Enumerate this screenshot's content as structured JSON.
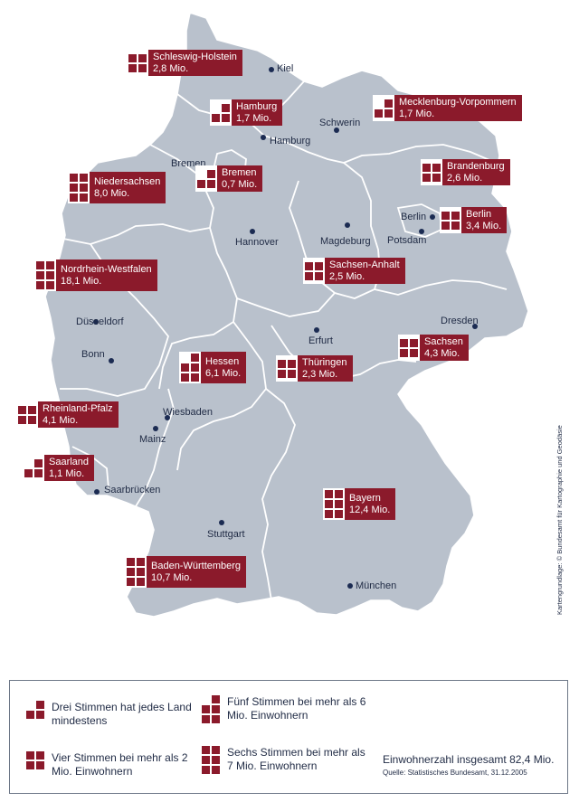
{
  "map": {
    "cities": [
      {
        "id": "kiel",
        "name": "Kiel"
      },
      {
        "id": "schwerin",
        "name": "Schwerin"
      },
      {
        "id": "hamburg",
        "name": "Hamburg"
      },
      {
        "id": "bremen",
        "name": "Bremen"
      },
      {
        "id": "berlin",
        "name": "Berlin"
      },
      {
        "id": "potsdam",
        "name": "Potsdam"
      },
      {
        "id": "hannover",
        "name": "Hannover"
      },
      {
        "id": "magdeburg",
        "name": "Magdeburg"
      },
      {
        "id": "duesseldorf",
        "name": "Düsseldorf"
      },
      {
        "id": "bonn",
        "name": "Bonn"
      },
      {
        "id": "erfurt",
        "name": "Erfurt"
      },
      {
        "id": "dresden",
        "name": "Dresden"
      },
      {
        "id": "wiesbaden",
        "name": "Wiesbaden"
      },
      {
        "id": "mainz",
        "name": "Mainz"
      },
      {
        "id": "saarbruecken",
        "name": "Saarbrücken"
      },
      {
        "id": "stuttgart",
        "name": "Stuttgart"
      },
      {
        "id": "muenchen",
        "name": "München"
      }
    ],
    "states": [
      {
        "id": "sh",
        "name": "Schleswig-Holstein",
        "population": "2,8 Mio.",
        "votes": 4
      },
      {
        "id": "hh",
        "name": "Hamburg",
        "population": "1,7 Mio.",
        "votes": 3
      },
      {
        "id": "mv",
        "name": "Mecklenburg-Vorpommern",
        "population": "1,7 Mio.",
        "votes": 3
      },
      {
        "id": "hb",
        "name": "Bremen",
        "population": "0,7 Mio.",
        "votes": 3
      },
      {
        "id": "ni",
        "name": "Niedersachsen",
        "population": "8,0 Mio.",
        "votes": 6
      },
      {
        "id": "bb",
        "name": "Brandenburg",
        "population": "2,6 Mio.",
        "votes": 4
      },
      {
        "id": "be",
        "name": "Berlin",
        "population": "3,4 Mio.",
        "votes": 4
      },
      {
        "id": "st",
        "name": "Sachsen-Anhalt",
        "population": "2,5 Mio.",
        "votes": 4
      },
      {
        "id": "nw",
        "name": "Nordrhein-Westfalen",
        "population": "18,1 Mio.",
        "votes": 6
      },
      {
        "id": "sn",
        "name": "Sachsen",
        "population": "4,3 Mio.",
        "votes": 4
      },
      {
        "id": "he",
        "name": "Hessen",
        "population": "6,1 Mio.",
        "votes": 5
      },
      {
        "id": "th",
        "name": "Thüringen",
        "population": "2,3 Mio.",
        "votes": 4
      },
      {
        "id": "rp",
        "name": "Rheinland-Pfalz",
        "population": "4,1 Mio.",
        "votes": 4
      },
      {
        "id": "sl",
        "name": "Saarland",
        "population": "1,1 Mio.",
        "votes": 3
      },
      {
        "id": "by",
        "name": "Bayern",
        "population": "12,4 Mio.",
        "votes": 6
      },
      {
        "id": "bw",
        "name": "Baden-Württemberg",
        "population": "10,7 Mio.",
        "votes": 6
      }
    ],
    "credit": "Kartengrundlage: © Bundesamt für Kartographie und Geodäsie"
  },
  "legend": {
    "items": [
      {
        "votes": 3,
        "text": "Drei Stimmen hat jedes Land mindestens"
      },
      {
        "votes": 5,
        "text": "Fünf Stimmen bei mehr als 6 Mio. Einwohnern"
      },
      {
        "votes": 4,
        "text": "Vier Stimmen bei mehr als 2 Mio. Einwohnern"
      },
      {
        "votes": 6,
        "text": "Sechs Stimmen bei mehr als 7 Mio. Einwohnern"
      }
    ],
    "total": "Einwohnerzahl insgesamt 82,4 Mio.",
    "source": "Quelle: Statistisches Bundesamt, 31.12.2005"
  },
  "colors": {
    "state_fill": "#b9c1cc",
    "border": "#ffffff",
    "label_bg": "#8b1a2b",
    "text": "#1f2a44"
  }
}
